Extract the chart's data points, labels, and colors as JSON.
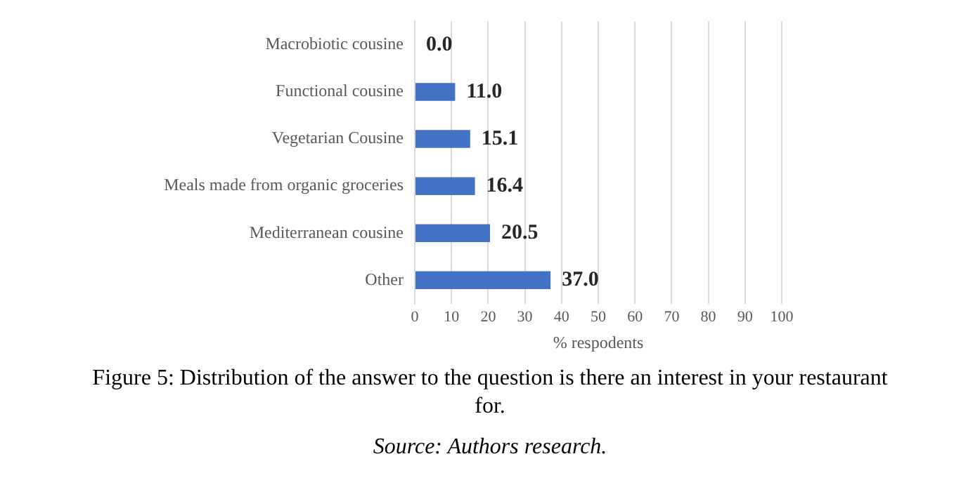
{
  "chart_data": {
    "type": "bar",
    "orientation": "horizontal",
    "xlabel": "% respodents",
    "categories": [
      "Macrobiotic cousine",
      "Functional cousine",
      "Vegetarian Cousine",
      "Meals made from organic groceries",
      "Mediterranean cousine",
      "Other"
    ],
    "values": [
      0.0,
      11.0,
      15.1,
      16.4,
      20.5,
      37.0
    ],
    "color": "#4472c4",
    "value_labels": [
      "0.0",
      "11.0",
      "15.1",
      "16.4",
      "20.5",
      "37.0"
    ],
    "xlim": [
      0,
      100
    ],
    "xticks": [
      0,
      10,
      20,
      30,
      40,
      50,
      60,
      70,
      80,
      90,
      100
    ],
    "grid": "x",
    "legend": false,
    "annotations": [
      "Figure 5: Distribution of the answer to the question is there an interest in your restaurant for.",
      "Source: Authors research."
    ]
  }
}
